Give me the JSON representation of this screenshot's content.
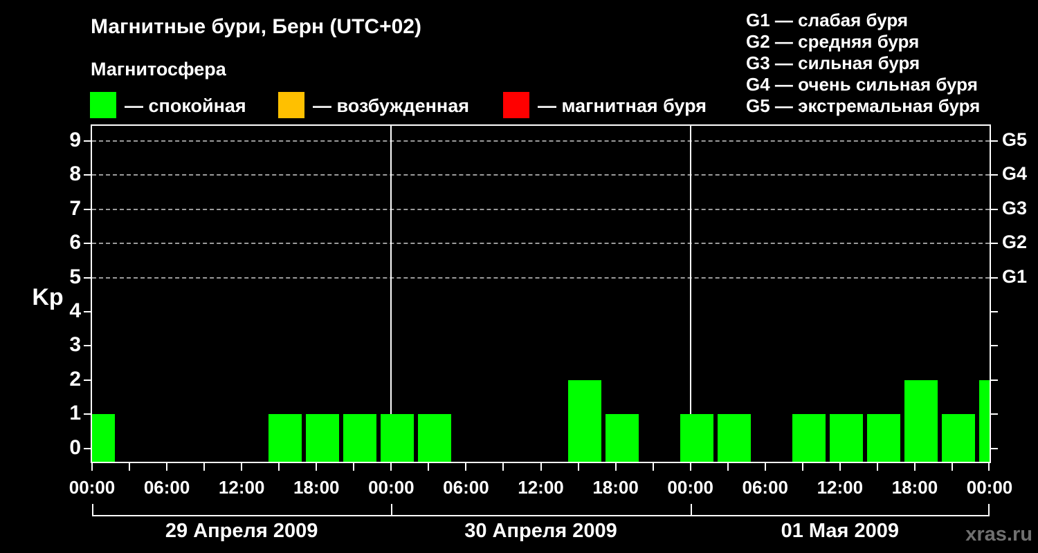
{
  "header": {
    "title": "Магнитные бури, Берн (UTC+02)",
    "subtitle": "Магнитосфера",
    "legend": [
      {
        "key": "quiet",
        "color": "#00ff00",
        "label": "— спокойная"
      },
      {
        "key": "unsettled",
        "color": "#ffc000",
        "label": "— возбужденная"
      },
      {
        "key": "storm",
        "color": "#ff0000",
        "label": "— магнитная буря"
      }
    ],
    "storm_scale": [
      "G1 — слабая буря",
      "G2 — средняя буря",
      "G3 — сильная буря",
      "G4 — очень сильная буря",
      "G5 — экстремальная буря"
    ]
  },
  "watermark": "xras.ru",
  "chart_data": {
    "type": "bar",
    "title": "Магнитные бури, Берн (UTC+02)",
    "ylabel": "Kp",
    "ylim": [
      0,
      9
    ],
    "y_ticks": [
      0,
      1,
      2,
      3,
      4,
      5,
      6,
      7,
      8,
      9
    ],
    "grid": "dashed horizontal lines at Kp 5..9 only",
    "g_scale": [
      {
        "kp": 5,
        "label": "G1"
      },
      {
        "kp": 6,
        "label": "G2"
      },
      {
        "kp": 7,
        "label": "G3"
      },
      {
        "kp": 8,
        "label": "G4"
      },
      {
        "kp": 9,
        "label": "G5"
      }
    ],
    "x_total_hours": 72,
    "x_minor_tick_hours": 3,
    "x_label_step_hours": 6,
    "x_tick_labels": [
      "00:00",
      "06:00",
      "12:00",
      "18:00",
      "00:00",
      "06:00",
      "12:00",
      "18:00",
      "00:00",
      "06:00",
      "12:00",
      "18:00",
      "00:00"
    ],
    "day_labels": [
      "29 Апреля 2009",
      "30 Апреля 2009",
      "01 Мая 2009"
    ],
    "bar_interval_hours": 3,
    "bars": [
      {
        "start_hour": -1,
        "kp": 1
      },
      {
        "start_hour": 14,
        "kp": 1
      },
      {
        "start_hour": 17,
        "kp": 1
      },
      {
        "start_hour": 20,
        "kp": 1
      },
      {
        "start_hour": 23,
        "kp": 1
      },
      {
        "start_hour": 26,
        "kp": 1
      },
      {
        "start_hour": 38,
        "kp": 2
      },
      {
        "start_hour": 41,
        "kp": 1
      },
      {
        "start_hour": 47,
        "kp": 1
      },
      {
        "start_hour": 50,
        "kp": 1
      },
      {
        "start_hour": 56,
        "kp": 1
      },
      {
        "start_hour": 59,
        "kp": 1
      },
      {
        "start_hour": 62,
        "kp": 1
      },
      {
        "start_hour": 65,
        "kp": 2
      },
      {
        "start_hour": 68,
        "kp": 1
      },
      {
        "start_hour": 71,
        "kp": 2
      }
    ],
    "color_thresholds": {
      "quiet_below": 4,
      "storm_from": 5
    },
    "colors": {
      "quiet": "#00ff00",
      "unsettled": "#ffc000",
      "storm": "#ff0000",
      "axis": "#ffffff",
      "grid": "#9c9c9c",
      "watermark": "#707070",
      "background": "#000000"
    }
  }
}
